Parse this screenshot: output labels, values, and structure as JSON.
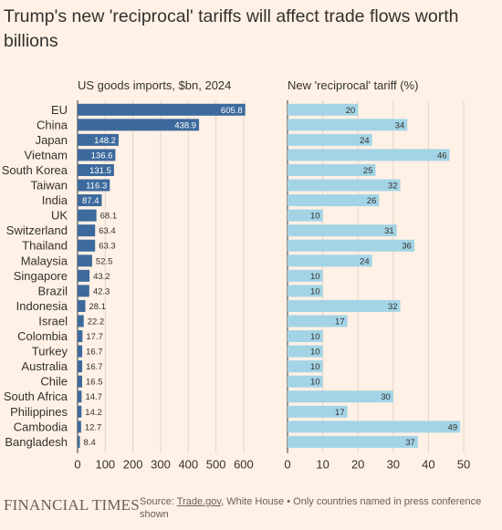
{
  "title": "Trump's new 'reciprocal' tariffs will affect trade flows worth billions",
  "footer": {
    "brand": "FINANCIAL TIMES",
    "source_label": "Source:",
    "source_link": "Trade.gov",
    "source_rest": ", White House • Only countries named in press conference shown"
  },
  "colors": {
    "background": "#fff1e5",
    "imports_bar": "#3d6a9c",
    "tariff_bar": "#a3d4e6",
    "text": "#33302e",
    "muted": "#66605c"
  },
  "chart_data": [
    {
      "type": "bar",
      "orientation": "horizontal",
      "title": "US goods imports, $bn, 2024",
      "categories": [
        "EU",
        "China",
        "Japan",
        "Vietnam",
        "South Korea",
        "Taiwan",
        "India",
        "UK",
        "Switzerland",
        "Thailand",
        "Malaysia",
        "Singapore",
        "Brazil",
        "Indonesia",
        "Israel",
        "Colombia",
        "Turkey",
        "Australia",
        "Chile",
        "South Africa",
        "Philippines",
        "Cambodia",
        "Bangladesh"
      ],
      "values": [
        605.8,
        438.9,
        148.2,
        136.6,
        131.5,
        116.3,
        87.4,
        68.1,
        63.4,
        63.3,
        52.5,
        43.2,
        42.3,
        28.1,
        22.2,
        17.7,
        16.7,
        16.7,
        16.5,
        14.7,
        14.2,
        12.7,
        8.4
      ],
      "value_labels": [
        "605.8",
        "438.9",
        "148.2",
        "136.6",
        "131.5",
        "116.3",
        "87.4",
        "68.1",
        "63.4",
        "63.3",
        "52.5",
        "43.2",
        "42.3",
        "28.1",
        "22.2",
        "17.7",
        "16.7",
        "16.7",
        "16.5",
        "14.7",
        "14.2",
        "12.7",
        "8.4"
      ],
      "xlim": [
        0,
        620
      ],
      "xticks": [
        0,
        100,
        200,
        300,
        400,
        500,
        600
      ],
      "xtick_labels": [
        "0",
        "100",
        "200",
        "300",
        "400",
        "500",
        "600"
      ],
      "grid": true
    },
    {
      "type": "bar",
      "orientation": "horizontal",
      "title": "New 'reciprocal' tariff (%)",
      "categories": [
        "EU",
        "China",
        "Japan",
        "Vietnam",
        "South Korea",
        "Taiwan",
        "India",
        "UK",
        "Switzerland",
        "Thailand",
        "Malaysia",
        "Singapore",
        "Brazil",
        "Indonesia",
        "Israel",
        "Colombia",
        "Turkey",
        "Australia",
        "Chile",
        "South Africa",
        "Philippines",
        "Cambodia",
        "Bangladesh"
      ],
      "values": [
        20,
        34,
        24,
        46,
        25,
        32,
        26,
        10,
        31,
        36,
        24,
        10,
        10,
        32,
        17,
        10,
        10,
        10,
        10,
        30,
        17,
        49,
        37
      ],
      "value_labels": [
        "20",
        "34",
        "24",
        "46",
        "25",
        "32",
        "26",
        "10",
        "31",
        "36",
        "24",
        "10",
        "10",
        "32",
        "17",
        "10",
        "10",
        "10",
        "10",
        "30",
        "17",
        "49",
        "37"
      ],
      "xlim": [
        0,
        50
      ],
      "xticks": [
        0,
        10,
        20,
        30,
        40,
        50
      ],
      "xtick_labels": [
        "0",
        "10",
        "20",
        "30",
        "40",
        "50"
      ],
      "grid": true
    }
  ]
}
